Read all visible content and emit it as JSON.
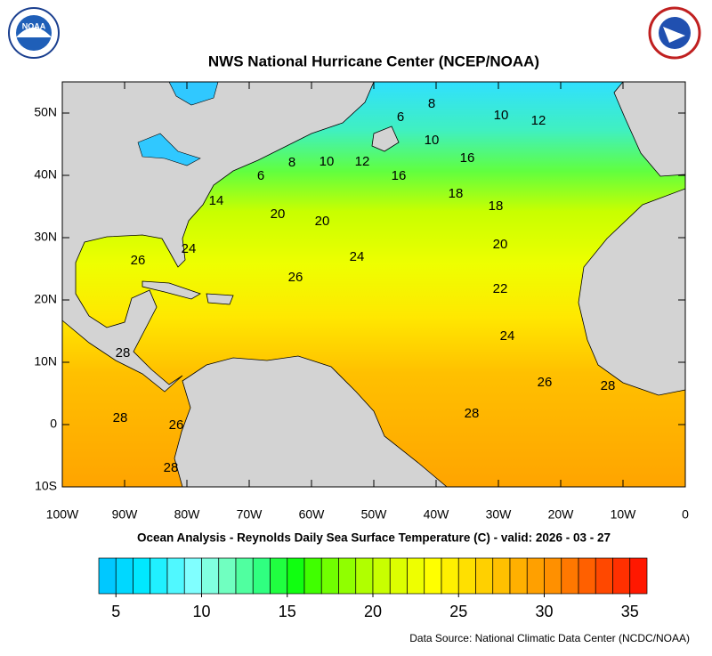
{
  "header": {
    "title": "NWS National Hurricane Center (NCEP/NOAA)",
    "subtitle": "Ocean Analysis - Reynolds Daily Sea Surface Temperature (C) - valid: 2026 - 03 - 27",
    "source": "Data Source: National Climatic Data Center (NCDC/NOAA)"
  },
  "logos": {
    "left": "NOAA"
  },
  "map": {
    "lon_range": [
      -100,
      0
    ],
    "lat_range": [
      -10,
      55
    ],
    "lon_ticks": [
      {
        "value": -100,
        "label": "100W"
      },
      {
        "value": -90,
        "label": "90W"
      },
      {
        "value": -80,
        "label": "80W"
      },
      {
        "value": -70,
        "label": "70W"
      },
      {
        "value": -60,
        "label": "60W"
      },
      {
        "value": -50,
        "label": "50W"
      },
      {
        "value": -40,
        "label": "40W"
      },
      {
        "value": -30,
        "label": "30W"
      },
      {
        "value": -20,
        "label": "20W"
      },
      {
        "value": -10,
        "label": "10W"
      },
      0
    ],
    "lat_ticks": [
      {
        "value": -10,
        "label": "10S"
      },
      0,
      {
        "value": 10,
        "label": "10N"
      },
      {
        "value": 20,
        "label": "20N"
      },
      {
        "value": 30,
        "label": "30N"
      },
      {
        "value": 40,
        "label": "40N"
      },
      {
        "value": 50,
        "label": "50N"
      }
    ],
    "contour_labels": [
      8,
      6,
      10,
      12,
      10,
      16,
      8,
      10,
      12,
      6,
      16,
      18,
      18,
      14,
      20,
      20,
      20,
      24,
      26,
      24,
      26,
      22,
      24,
      28,
      26,
      28,
      28,
      28,
      26,
      28
    ]
  },
  "colorbar": {
    "range": [
      4,
      36
    ],
    "colors": [
      "#00c8ff",
      "#00d8ff",
      "#00e8ff",
      "#20f0ff",
      "#50f8ff",
      "#80ffff",
      "#80ffe0",
      "#70ffc0",
      "#50ffa0",
      "#30ff80",
      "#20ff40",
      "#10ff10",
      "#40ff00",
      "#70ff00",
      "#90ff00",
      "#b0ff00",
      "#c8ff00",
      "#ddff00",
      "#eeff00",
      "#ffff00",
      "#fff000",
      "#ffe000",
      "#ffd000",
      "#ffc000",
      "#ffb000",
      "#ffa000",
      "#ff9000",
      "#ff7800",
      "#ff6000",
      "#ff4800",
      "#ff3000",
      "#ff1800"
    ],
    "ticks": [
      5,
      10,
      15,
      20,
      25,
      30,
      35
    ]
  }
}
